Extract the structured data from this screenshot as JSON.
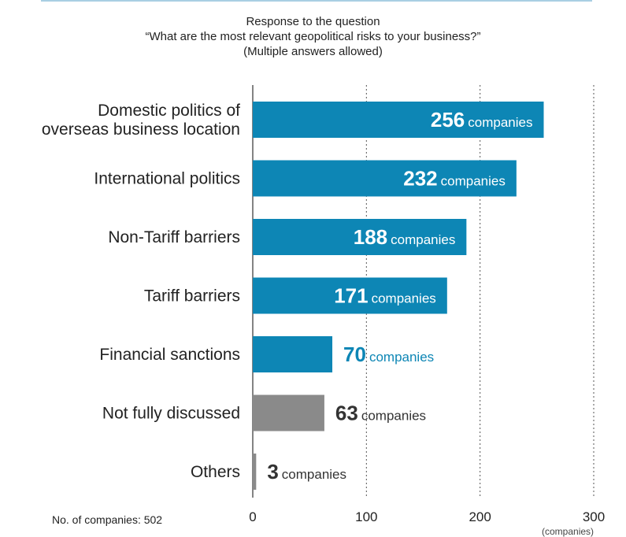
{
  "header": {
    "title_line1": "Response to the question",
    "title_line2": "“What are the most relevant geopolitical risks to your business?”",
    "title_line3": "(Multiple answers allowed)"
  },
  "footer": {
    "sample_note": "No. of companies: 502",
    "axis_unit": "(companies)"
  },
  "chart_data": {
    "type": "bar",
    "orientation": "horizontal",
    "categories": [
      [
        "Domestic politics of",
        "overseas business location"
      ],
      [
        "International politics"
      ],
      [
        "Non-Tariff barriers"
      ],
      [
        "Tariff barriers"
      ],
      [
        "Financial sanctions"
      ],
      [
        "Not fully discussed"
      ],
      [
        "Others"
      ]
    ],
    "values": [
      256,
      232,
      188,
      171,
      70,
      63,
      3
    ],
    "value_suffix": "companies",
    "bar_colors": [
      "#0d86b5",
      "#0d86b5",
      "#0d86b5",
      "#0d86b5",
      "#0d86b5",
      "#8a8a8a",
      "#8a8a8a"
    ],
    "label_colors": [
      "#ffffff",
      "#ffffff",
      "#ffffff",
      "#ffffff",
      "#0d86b5",
      "#333333",
      "#333333"
    ],
    "label_inside": [
      true,
      true,
      true,
      true,
      false,
      false,
      false
    ],
    "xlim": [
      0,
      300
    ],
    "xticks": [
      0,
      100,
      200,
      300
    ],
    "grid": "vertical-dotted"
  }
}
